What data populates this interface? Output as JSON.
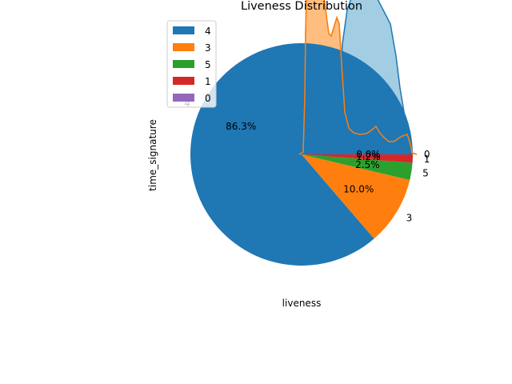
{
  "chart_data": {
    "type": "pie",
    "title": "Liveness Distribution",
    "xlabel": "liveness",
    "ylabel": "time_signature",
    "categories": [
      "4",
      "3",
      "5",
      "1",
      "0"
    ],
    "values": [
      86.3,
      10.0,
      2.5,
      1.2,
      0.0
    ],
    "autopct": [
      "86.3%",
      "10.0%",
      "2.5%",
      "1.2%",
      "0.0%"
    ],
    "colors": [
      "#1f77b4",
      "#ff7f0e",
      "#2ca02c",
      "#d62728",
      "#9467bd"
    ],
    "legend": {
      "placement": "upper-left",
      "entries": [
        "4",
        "3",
        "5",
        "1",
        "0"
      ]
    },
    "overlay_kde": {
      "type": "area",
      "series": [
        {
          "color": "#ff7f0e",
          "fill": "#ffbb78"
        },
        {
          "color": "#1f77b4",
          "fill": "#9ecae1"
        }
      ]
    }
  }
}
